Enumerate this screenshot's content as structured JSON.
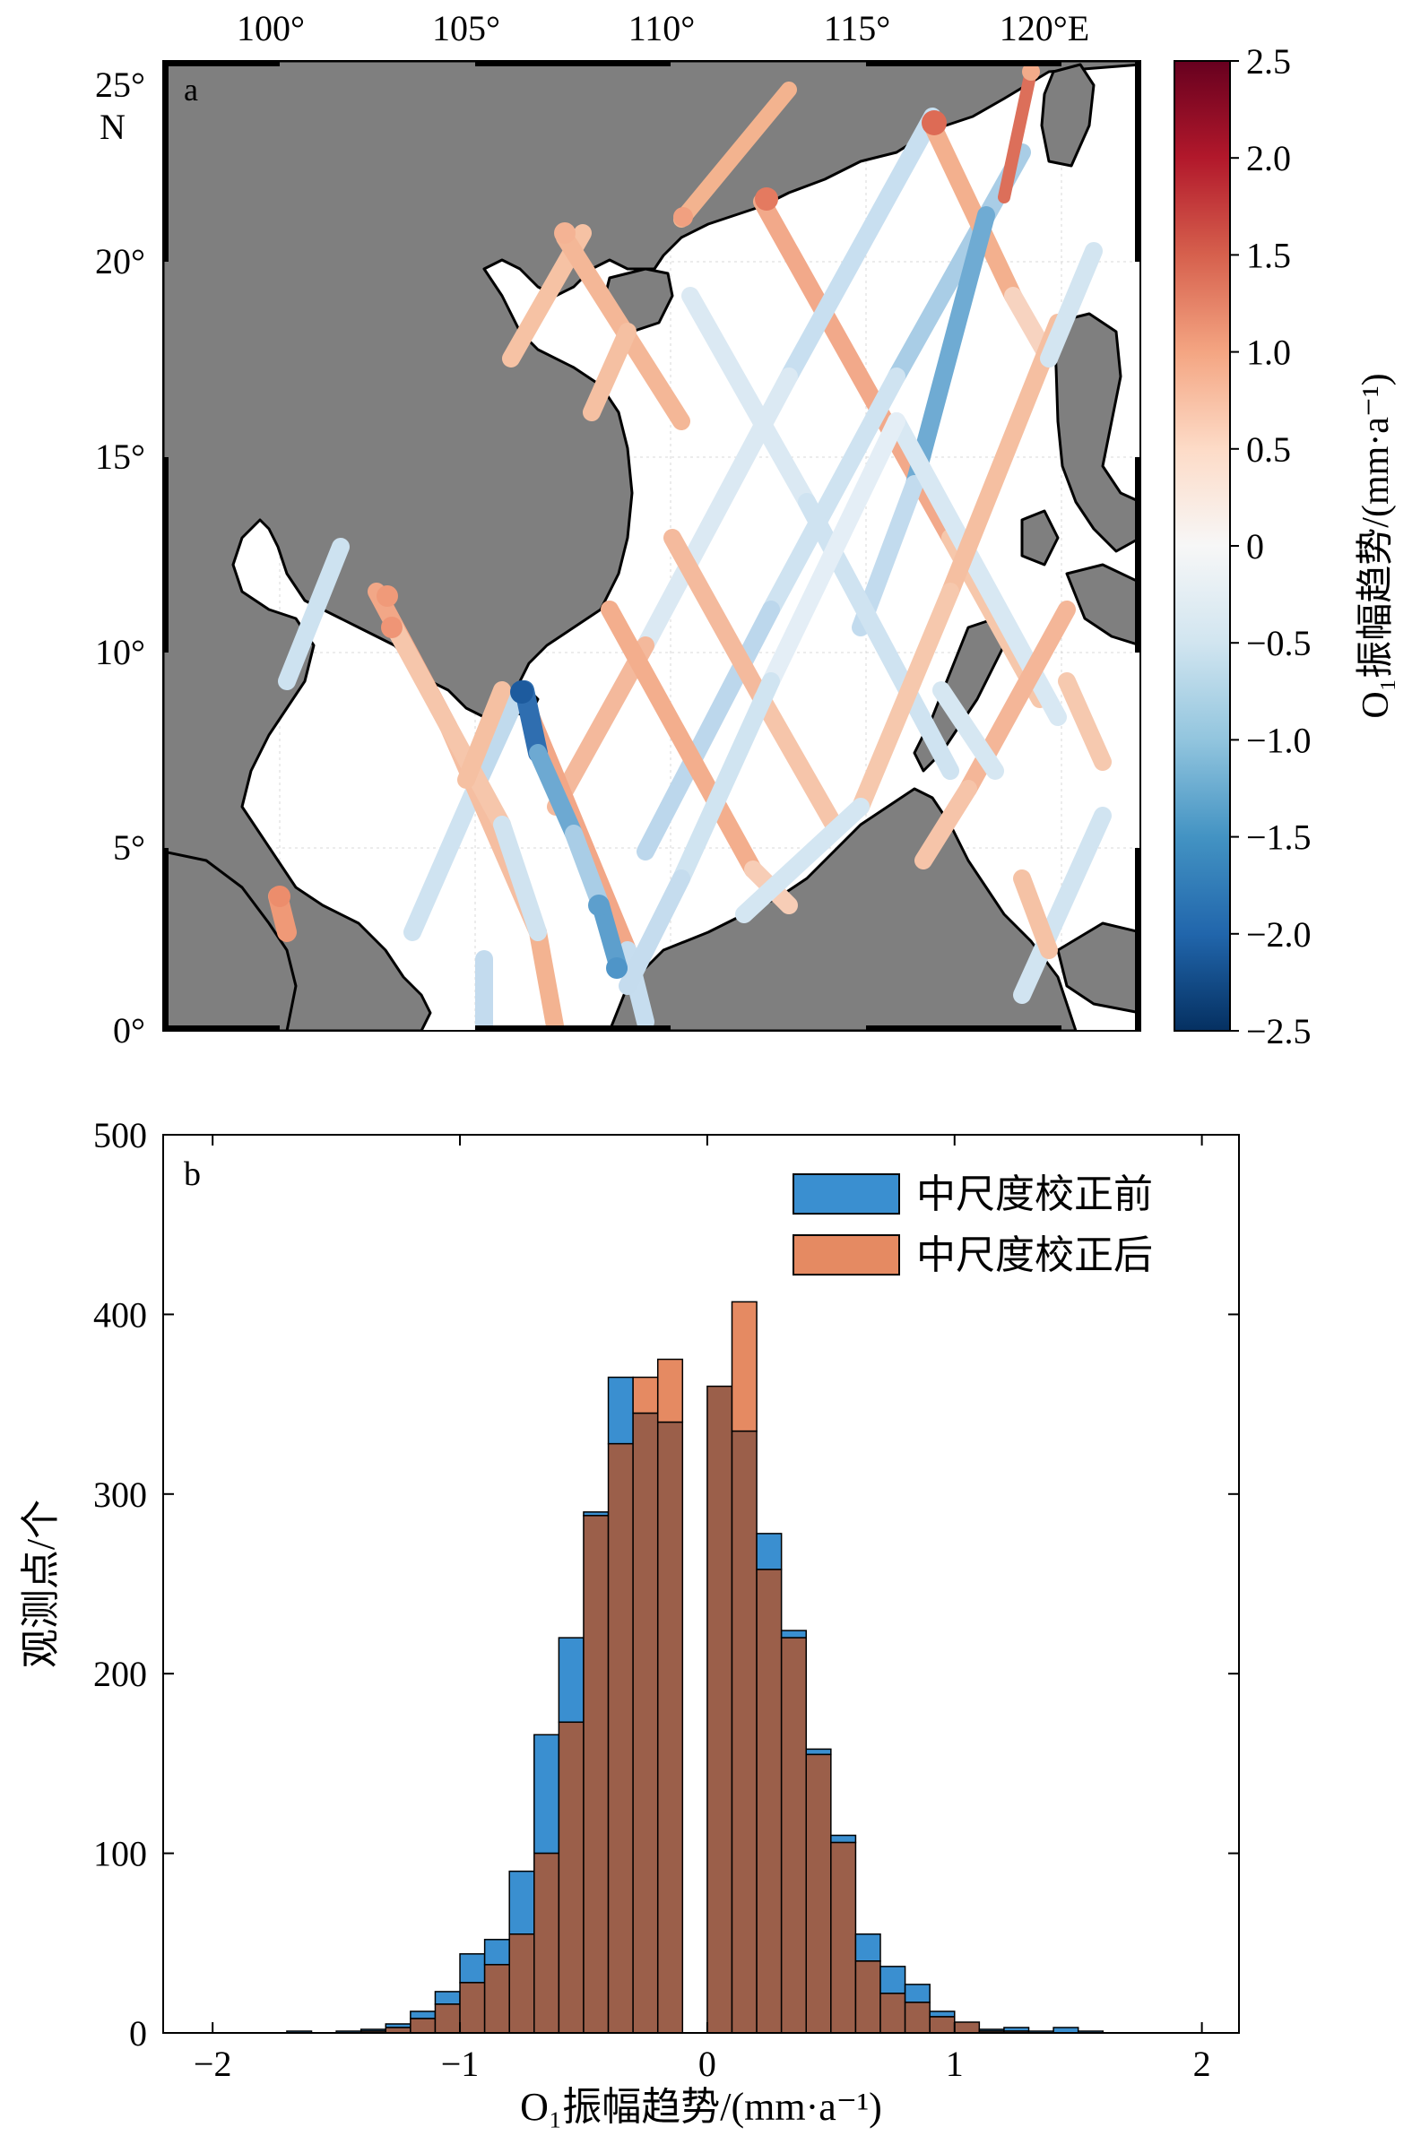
{
  "panel_a": {
    "label": "a",
    "lon_ticks": [
      "100°",
      "105°",
      "110°",
      "115°",
      "120°E"
    ],
    "lat_ticks": [
      "25°",
      "20°",
      "15°",
      "10°",
      "5°",
      "0°"
    ],
    "lat_unit": "N",
    "colorbar": {
      "title": "O₁振幅趋势/(mm·a⁻¹)",
      "ticks": [
        "2.5",
        "2.0",
        "1.5",
        "1.0",
        "0.5",
        "0",
        "−0.5",
        "−1.0",
        "−1.5",
        "−2.0",
        "−2.5"
      ],
      "min": -2.5,
      "max": 2.5,
      "stops": [
        "#053061",
        "#2166ac",
        "#4393c3",
        "#92c5de",
        "#d1e5f0",
        "#f7f7f7",
        "#fddbc7",
        "#f4a582",
        "#d6604d",
        "#b2182b",
        "#67001f"
      ]
    },
    "colors": {
      "land": "#7f7f7f",
      "coast": "#000000",
      "ocean": "#ffffff"
    }
  },
  "chart_data": {
    "type": "bar",
    "panel_label": "b",
    "xlabel": "O₁振幅趋势/(mm·a⁻¹)",
    "ylabel": "观测点/个",
    "xlim": [
      -2.2,
      2.15
    ],
    "ylim": [
      0,
      500
    ],
    "x_ticks": [
      "−2",
      "−1",
      "0",
      "1",
      "2"
    ],
    "y_ticks": [
      "0",
      "100",
      "200",
      "300",
      "400",
      "500"
    ],
    "bin_width": 0.1,
    "bin_left_edges": [
      -1.8,
      -1.7,
      -1.6,
      -1.5,
      -1.4,
      -1.3,
      -1.2,
      -1.1,
      -1.0,
      -0.9,
      -0.8,
      -0.7,
      -0.6,
      -0.5,
      -0.4,
      -0.3,
      -0.2,
      -0.1,
      0.0,
      0.1,
      0.2,
      0.3,
      0.4,
      0.5,
      0.6,
      0.7,
      0.8,
      0.9,
      1.0,
      1.1,
      1.2,
      1.3,
      1.4,
      1.5
    ],
    "legend_position": "top-right",
    "series": [
      {
        "name": "中尺度校正前",
        "color": "#3a8fd0",
        "values": [
          0,
          1,
          0,
          1,
          2,
          5,
          12,
          23,
          44,
          52,
          90,
          166,
          220,
          290,
          365,
          345,
          340,
          0,
          360,
          335,
          278,
          224,
          158,
          110,
          55,
          37,
          27,
          12,
          6,
          2,
          3,
          1,
          3,
          1
        ]
      },
      {
        "name": "中尺度校正后",
        "color": "#e58a62",
        "values": [
          0,
          0,
          0,
          0,
          1,
          3,
          8,
          16,
          28,
          38,
          55,
          100,
          173,
          288,
          328,
          365,
          375,
          0,
          360,
          407,
          258,
          220,
          155,
          106,
          40,
          22,
          17,
          9,
          6,
          1,
          1,
          0,
          0,
          0
        ]
      }
    ],
    "overlap_color": "#9b5f4a"
  }
}
